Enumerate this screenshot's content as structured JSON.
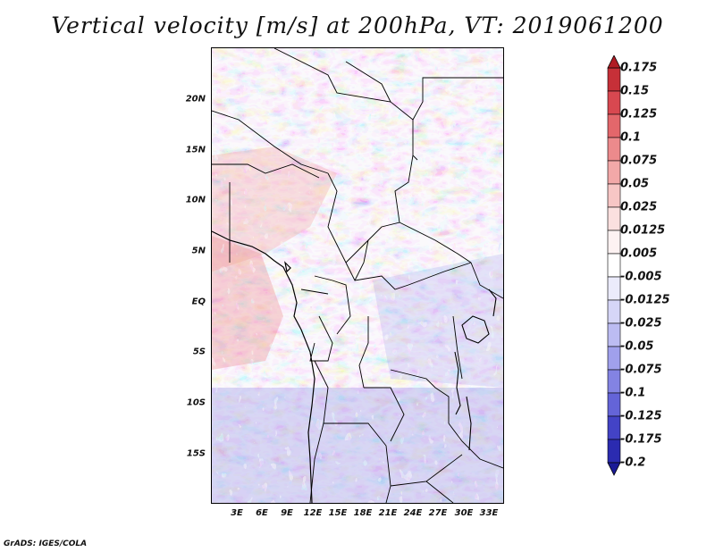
{
  "title": "Vertical velocity [m/s] at 200hPa, VT: 2019061200",
  "credit": "GrADS: IGES/COLA",
  "map": {
    "lat_labels": [
      "20N",
      "15N",
      "10N",
      "5N",
      "EQ",
      "5S",
      "10S",
      "15S"
    ],
    "lon_labels": [
      "3E",
      "6E",
      "9E",
      "12E",
      "15E",
      "18E",
      "21E",
      "24E",
      "27E",
      "30E",
      "33E"
    ]
  },
  "colorbar": {
    "labels": [
      "0.175",
      "0.15",
      "0.125",
      "0.1",
      "0.075",
      "0.05",
      "0.025",
      "0.0125",
      "0.005",
      "-0.005",
      "-0.0125",
      "-0.025",
      "-0.05",
      "-0.075",
      "-0.1",
      "-0.125",
      "-0.175",
      "-0.2"
    ],
    "colors": [
      "#b01c24",
      "#c63038",
      "#d84850",
      "#e3676b",
      "#ec8a8c",
      "#f2a8a8",
      "#f7c6c5",
      "#fbe0df",
      "#fdf2f2",
      "#ffffff",
      "#ebebfb",
      "#d6d6f7",
      "#bcbcf2",
      "#a0a0ec",
      "#8383e3",
      "#6464d8",
      "#4343c6",
      "#2b2bb0",
      "#1a1a96"
    ]
  }
}
